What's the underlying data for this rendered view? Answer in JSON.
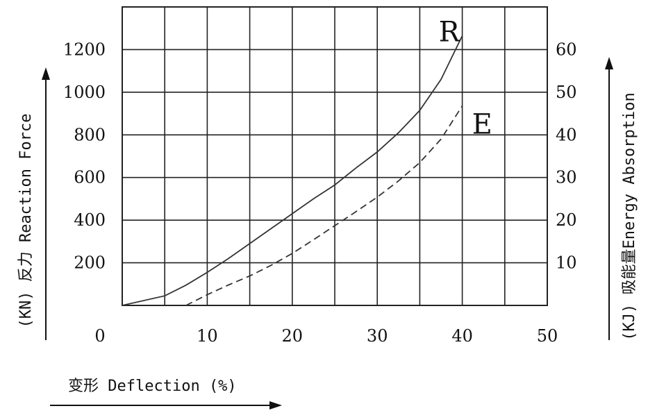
{
  "chart_data": {
    "type": "line",
    "x_axis": {
      "label": "变形 Deflection (%)",
      "range": [
        0,
        50
      ],
      "ticks": [
        "0",
        "10",
        "20",
        "30",
        "40",
        "50"
      ]
    },
    "y_left": {
      "label": "(KN) 反力 Reaction Force",
      "range": [
        0,
        1400
      ],
      "ticks": [
        "200",
        "400",
        "600",
        "800",
        "1000",
        "1200"
      ]
    },
    "y_right": {
      "label": "(KJ) 吸能量Energy Absorption",
      "range": [
        0,
        70
      ],
      "ticks": [
        "10",
        "20",
        "30",
        "40",
        "50",
        "60"
      ]
    },
    "grid": true,
    "series": [
      {
        "name": "R",
        "axis": "left",
        "style": "solid",
        "x": [
          0,
          5,
          7.5,
          10,
          12.5,
          15,
          17.5,
          20,
          22.5,
          25,
          27.5,
          30,
          32.5,
          35,
          37.5,
          40
        ],
        "values": [
          0,
          45,
          95,
          155,
          220,
          290,
          360,
          430,
          500,
          565,
          645,
          720,
          810,
          915,
          1060,
          1265
        ]
      },
      {
        "name": "E",
        "axis": "right",
        "style": "dashed",
        "x": [
          7.5,
          10,
          12.5,
          15,
          17.5,
          20,
          22.5,
          25,
          27.5,
          30,
          32.5,
          35,
          37.5,
          40
        ],
        "values": [
          0,
          2.5,
          4.8,
          6.9,
          9.4,
          12.2,
          15.4,
          18.7,
          22,
          25.4,
          29.2,
          33.5,
          39,
          46.8
        ]
      }
    ]
  }
}
